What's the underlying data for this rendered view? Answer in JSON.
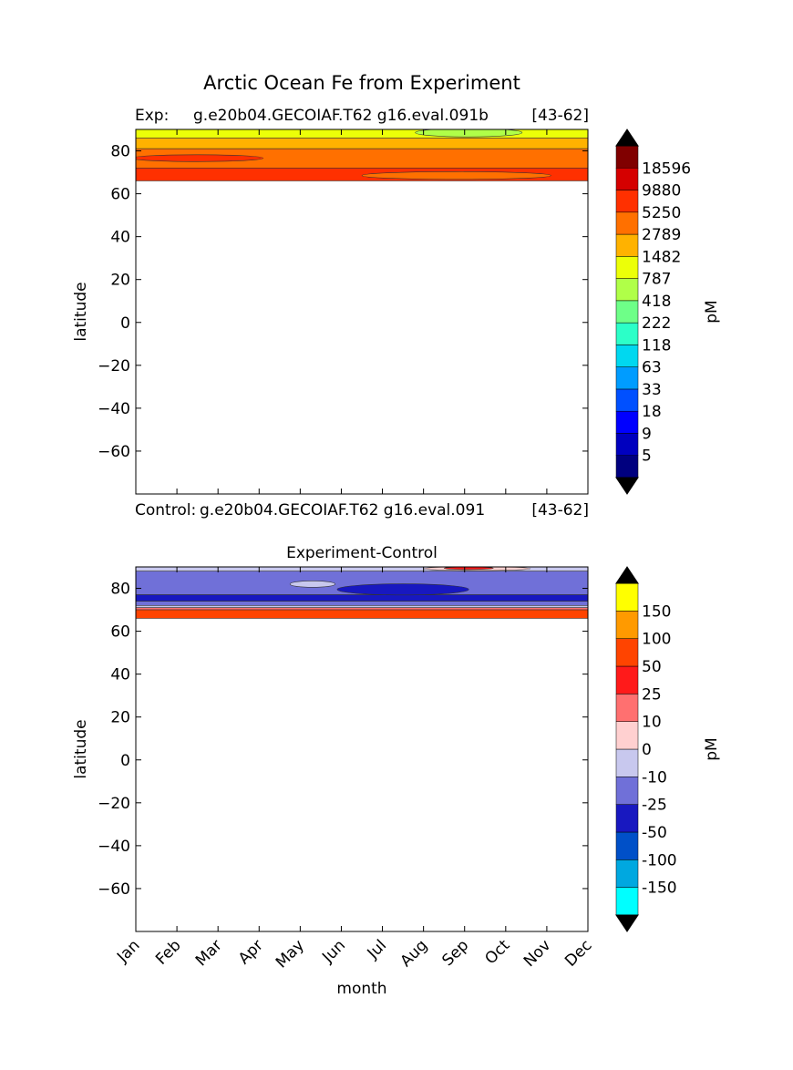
{
  "figure": {
    "title": "Arctic Ocean Fe from Experiment"
  },
  "colors": {
    "abs_levels": [
      "#00007f",
      "#0000bf",
      "#0000ff",
      "#0050ff",
      "#009cff",
      "#00d8f0",
      "#2cffc8",
      "#6eff88",
      "#b0ff48",
      "#ecff08",
      "#ffb200",
      "#ff7000",
      "#ff3000",
      "#d50000",
      "#800000"
    ],
    "abs_under": "#000000",
    "abs_over": "#000000",
    "diff_levels": [
      "#00ffff",
      "#00a8e0",
      "#0050c8",
      "#1818c0",
      "#7070d8",
      "#c8c8ee",
      "#ffd0d0",
      "#ff7070",
      "#ff1a1a",
      "#ff4400",
      "#ff9a00",
      "#ffff00"
    ],
    "diff_under": "#000000",
    "diff_over": "#000000",
    "contour_line": "#333333"
  },
  "chart_data": [
    {
      "type": "heatmap",
      "panel_id": "exp",
      "title_left": "Exp:",
      "title_center": "g.e20b04.GECOIAF.T62 g16.eval.091b",
      "title_right": "[43-62]",
      "xlabel": "",
      "ylabel": "latitude",
      "x": [
        "Jan",
        "Feb",
        "Mar",
        "Apr",
        "May",
        "Jun",
        "Jul",
        "Aug",
        "Sep",
        "Oct",
        "Nov",
        "Dec"
      ],
      "xlim": [
        0,
        11
      ],
      "ylim": [
        -80,
        90
      ],
      "yticks": [
        "80",
        "60",
        "40",
        "20",
        "0",
        "−20",
        "−40",
        "−60"
      ],
      "ytick_values": [
        80,
        60,
        40,
        20,
        0,
        -20,
        -40,
        -60
      ],
      "show_xtick_labels": false,
      "colorbar": {
        "label": "pM",
        "boundaries": [
          "5",
          "9",
          "18",
          "33",
          "63",
          "118",
          "222",
          "418",
          "787",
          "1482",
          "2789",
          "5250",
          "9880",
          "18596"
        ],
        "extend": "both"
      },
      "bands": [
        {
          "level": 9,
          "lat_lo": 86,
          "lat_hi": 90,
          "note": "787-1482"
        },
        {
          "level": 10,
          "lat_lo": 81,
          "lat_hi": 86,
          "note": "1482-2789"
        },
        {
          "level": 11,
          "lat_lo": 72,
          "lat_hi": 81,
          "note": "2789-5250"
        },
        {
          "level": 12,
          "lat_lo": 66,
          "lat_hi": 72,
          "note": "5250-9880"
        }
      ],
      "blobs": [
        {
          "level": 8,
          "month_center": 8.1,
          "lat_center": 88.5,
          "month_half_width": 1.3,
          "lat_half_height": 2.0
        },
        {
          "level": 12,
          "month_center": 1.5,
          "lat_center": 76.6,
          "month_half_width": 1.6,
          "lat_half_height": 1.6
        },
        {
          "level": 11,
          "month_center": 7.8,
          "lat_center": 68.5,
          "month_half_width": 2.3,
          "lat_half_height": 1.8
        }
      ]
    },
    {
      "type": "heatmap",
      "panel_id": "diff",
      "title_left": "Control:",
      "title_center": "g.e20b04.GECOIAF.T62 g16.eval.091",
      "title_right": "[43-62]",
      "subtitle": "Experiment-Control",
      "xlabel": "month",
      "ylabel": "latitude",
      "x": [
        "Jan",
        "Feb",
        "Mar",
        "Apr",
        "May",
        "Jun",
        "Jul",
        "Aug",
        "Sep",
        "Oct",
        "Nov",
        "Dec"
      ],
      "xlim": [
        0,
        11
      ],
      "ylim": [
        -80,
        90
      ],
      "yticks": [
        "80",
        "60",
        "40",
        "20",
        "0",
        "−20",
        "−40",
        "−60"
      ],
      "ytick_values": [
        80,
        60,
        40,
        20,
        0,
        -20,
        -40,
        -60
      ],
      "show_xtick_labels": true,
      "colorbar": {
        "label": "pM",
        "boundaries": [
          "-150",
          "-100",
          "-50",
          "-25",
          "-10",
          "0",
          "10",
          "25",
          "50",
          "100",
          "150"
        ],
        "extend": "both"
      },
      "bands": [
        {
          "level": 5,
          "lat_lo": 88,
          "lat_hi": 90,
          "note": "-10-0"
        },
        {
          "level": 4,
          "lat_lo": 77,
          "lat_hi": 88,
          "note": "-25--10"
        },
        {
          "level": 3,
          "lat_lo": 74,
          "lat_hi": 77,
          "note": "-50--25"
        },
        {
          "level": 4,
          "lat_lo": 72,
          "lat_hi": 74,
          "note": "-25--10"
        },
        {
          "level": 5,
          "lat_lo": 71,
          "lat_hi": 72,
          "note": "-10-0"
        },
        {
          "level": 7,
          "lat_lo": 70,
          "lat_hi": 71,
          "note": "10-25"
        },
        {
          "level": 9,
          "lat_lo": 66,
          "lat_hi": 70,
          "note": "50-100"
        }
      ],
      "blobs": [
        {
          "level": 3,
          "month_center": 6.5,
          "lat_center": 79.5,
          "month_half_width": 1.6,
          "lat_half_height": 2.6
        },
        {
          "level": 5,
          "month_center": 4.3,
          "lat_center": 82.0,
          "month_half_width": 0.55,
          "lat_half_height": 1.5
        },
        {
          "level": 6,
          "month_center": 8.3,
          "lat_center": 89.2,
          "month_half_width": 1.3,
          "lat_half_height": 0.9
        },
        {
          "level": 8,
          "month_center": 8.1,
          "lat_center": 89.4,
          "month_half_width": 0.6,
          "lat_half_height": 0.6
        }
      ]
    }
  ]
}
